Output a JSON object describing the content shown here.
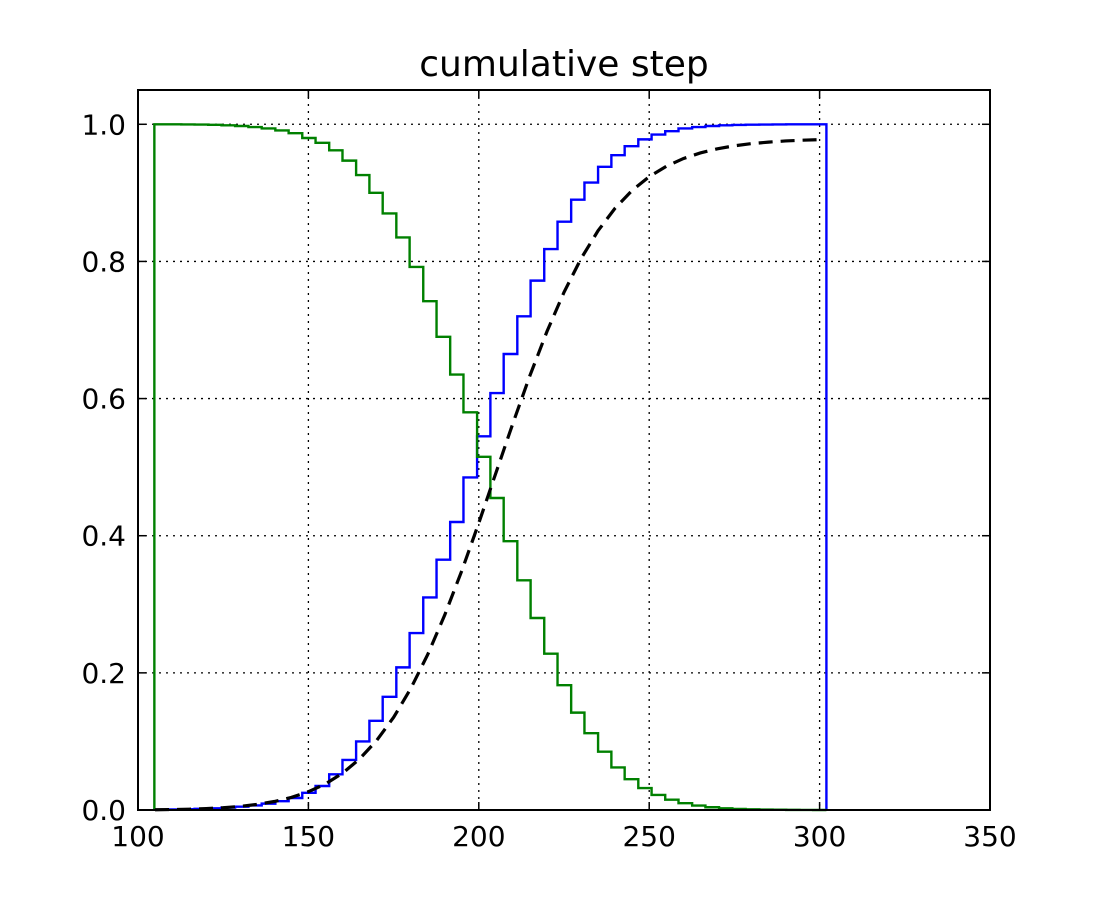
{
  "chart_data": {
    "type": "line",
    "title": "cumulative step",
    "xlabel": "",
    "ylabel": "",
    "xlim": [
      100,
      350
    ],
    "ylim": [
      0.0,
      1.05
    ],
    "xticks": [
      100,
      150,
      200,
      250,
      300,
      350
    ],
    "xtick_labels": [
      "100",
      "150",
      "200",
      "250",
      "300",
      "350"
    ],
    "yticks": [
      0.0,
      0.2,
      0.4,
      0.6,
      0.8,
      1.0
    ],
    "ytick_labels": [
      "0.0",
      "0.2",
      "0.4",
      "0.6",
      "0.8",
      "1.0"
    ],
    "grid": true,
    "bin_edges": [
      104.8,
      108.7,
      112.7,
      116.6,
      120.6,
      124.5,
      128.5,
      132.4,
      136.3,
      140.3,
      144.2,
      148.2,
      152.1,
      156.1,
      160.0,
      164.0,
      167.9,
      171.8,
      175.8,
      179.7,
      183.7,
      187.6,
      191.6,
      195.5,
      199.5,
      203.4,
      207.3,
      211.3,
      215.2,
      219.2,
      223.1,
      227.1,
      231.0,
      235.0,
      238.9,
      242.8,
      246.8,
      250.7,
      254.7,
      258.6,
      262.6,
      266.5,
      270.5,
      274.4,
      278.3,
      282.3,
      286.2,
      290.2,
      294.1,
      298.1,
      302.0
    ],
    "series": [
      {
        "color": "#0000ff",
        "style": "step",
        "values": [
          0.0004,
          0.0008,
          0.0012,
          0.0018,
          0.0025,
          0.0035,
          0.0048,
          0.0067,
          0.0093,
          0.0128,
          0.0175,
          0.025,
          0.035,
          0.052,
          0.073,
          0.1,
          0.13,
          0.165,
          0.208,
          0.258,
          0.31,
          0.365,
          0.42,
          0.485,
          0.545,
          0.608,
          0.665,
          0.72,
          0.772,
          0.818,
          0.858,
          0.89,
          0.915,
          0.938,
          0.955,
          0.968,
          0.978,
          0.985,
          0.99,
          0.994,
          0.996,
          0.9975,
          0.9985,
          0.999,
          0.9994,
          0.9996,
          0.9998,
          0.9999,
          1.0,
          1.0
        ]
      },
      {
        "color": "#008000",
        "style": "step",
        "values": [
          1.0,
          0.9999,
          0.9998,
          0.9996,
          0.9992,
          0.9985,
          0.9975,
          0.996,
          0.994,
          0.991,
          0.987,
          0.98,
          0.973,
          0.962,
          0.947,
          0.926,
          0.9,
          0.87,
          0.835,
          0.792,
          0.742,
          0.69,
          0.635,
          0.58,
          0.515,
          0.455,
          0.392,
          0.335,
          0.28,
          0.228,
          0.182,
          0.142,
          0.112,
          0.085,
          0.062,
          0.045,
          0.032,
          0.022,
          0.015,
          0.01,
          0.0065,
          0.004,
          0.0025,
          0.0015,
          0.001,
          0.0006,
          0.0004,
          0.0002,
          0.0001,
          0.0
        ]
      },
      {
        "color": "#000000",
        "style": "dashed",
        "x": [
          105,
          110,
          115,
          120,
          125,
          130,
          135,
          140,
          145,
          150,
          155,
          160,
          165,
          170,
          175,
          180,
          185,
          190,
          195,
          200,
          205,
          210,
          215,
          220,
          225,
          230,
          235,
          240,
          245,
          250,
          255,
          260,
          265,
          270,
          275,
          280,
          285,
          290,
          295,
          300
        ],
        "values": [
          0.0004,
          0.0007,
          0.0012,
          0.002,
          0.0033,
          0.0053,
          0.0082,
          0.0124,
          0.0183,
          0.0267,
          0.038,
          0.0536,
          0.0744,
          0.1012,
          0.1351,
          0.1768,
          0.2266,
          0.2843,
          0.3488,
          0.4186,
          0.4913,
          0.5638,
          0.6335,
          0.6978,
          0.755,
          0.8041,
          0.8448,
          0.8777,
          0.9036,
          0.9236,
          0.9387,
          0.95,
          0.9582,
          0.9643,
          0.9686,
          0.9718,
          0.974,
          0.9757,
          0.9768,
          0.9776
        ]
      }
    ]
  }
}
